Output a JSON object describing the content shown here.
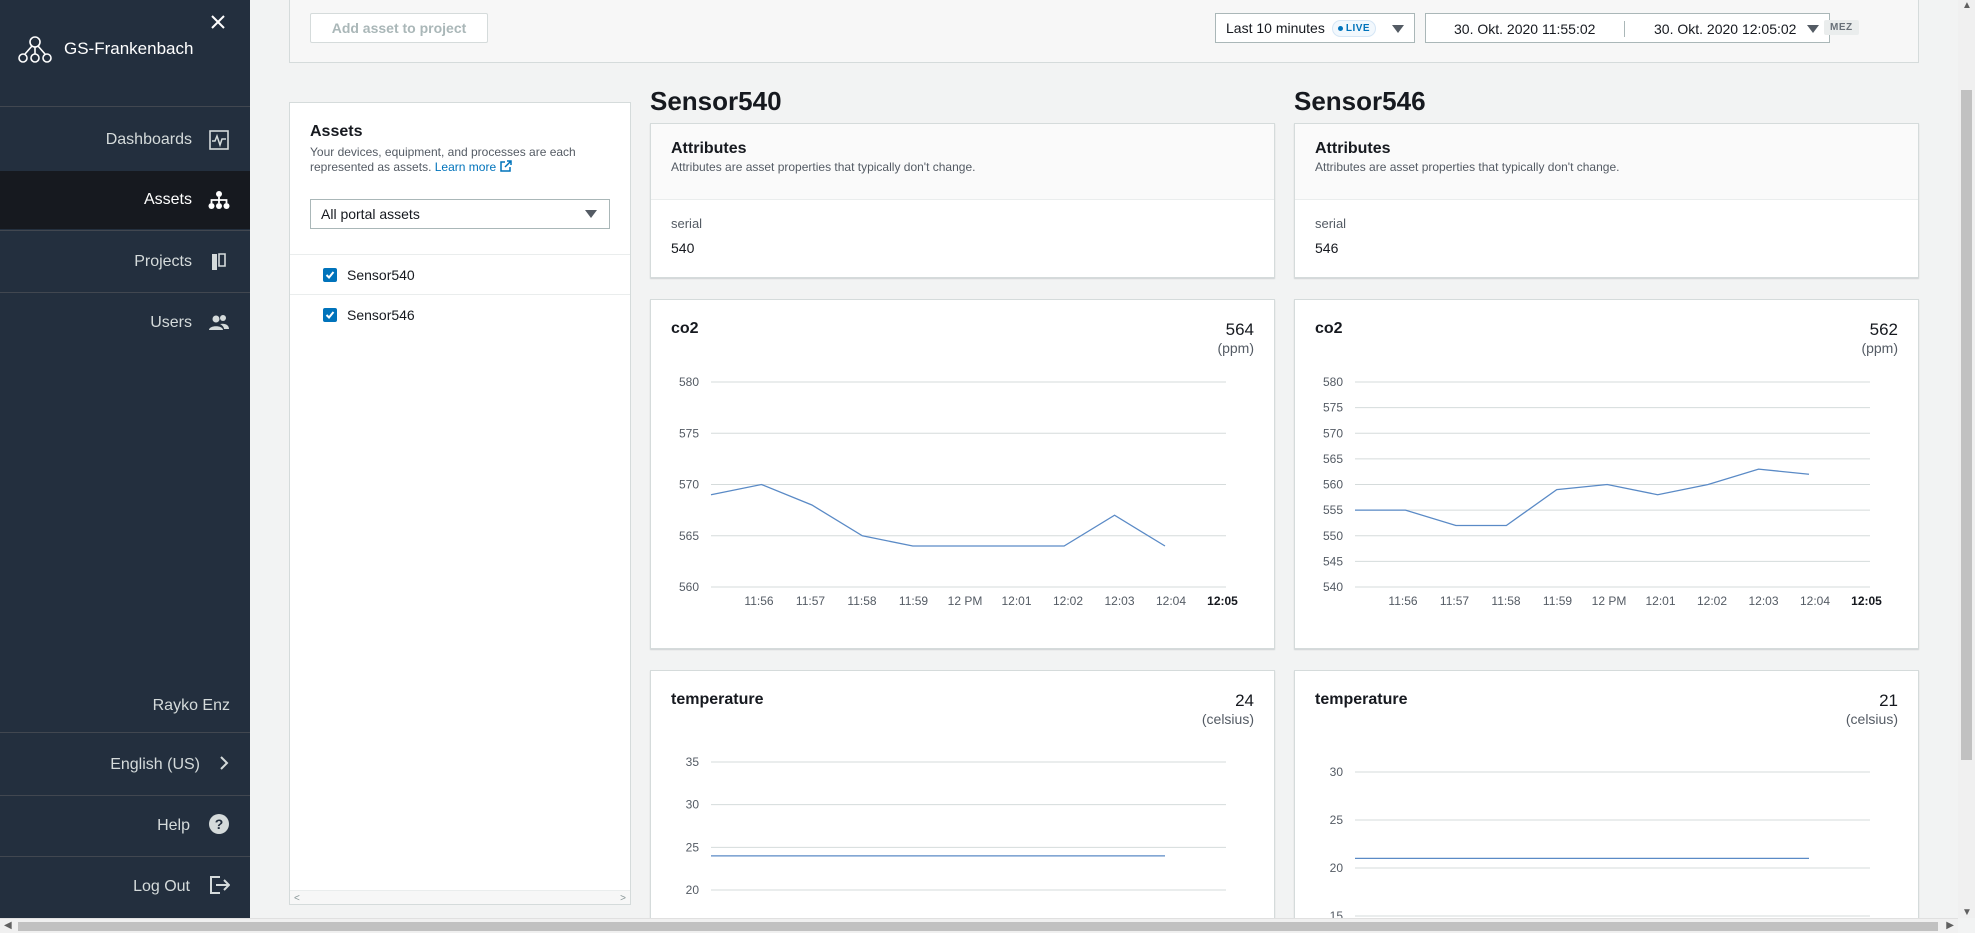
{
  "sidebar": {
    "portal_name": "GS-Frankenbach",
    "nav": [
      {
        "label": "Dashboards",
        "icon": "dashboard-icon"
      },
      {
        "label": "Assets",
        "icon": "hierarchy-icon"
      },
      {
        "label": "Projects",
        "icon": "projects-icon"
      },
      {
        "label": "Users",
        "icon": "users-icon"
      }
    ],
    "user": "Rayko Enz",
    "language": "English (US)",
    "help": "Help",
    "logout": "Log Out"
  },
  "toolbar": {
    "add_asset": "Add asset to project",
    "time_range": "Last 10 minutes",
    "live": "LIVE",
    "start": "30. Okt. 2020 11:55:02",
    "end": "30. Okt. 2020 12:05:02",
    "timezone": "MEZ"
  },
  "assets_panel": {
    "title": "Assets",
    "description": "Your devices, equipment, and processes are each represented as assets.",
    "learn_more": "Learn more",
    "filter": "All portal assets",
    "items": [
      "Sensor540",
      "Sensor546"
    ]
  },
  "sensors": [
    {
      "name": "Sensor540",
      "attributes_title": "Attributes",
      "attributes_desc": "Attributes are asset properties that typically don't change.",
      "serial_label": "serial",
      "serial_value": "540",
      "co2": {
        "name": "co2",
        "value": "564",
        "unit": "(ppm)"
      },
      "temperature": {
        "name": "temperature",
        "value": "24",
        "unit": "(celsius)"
      }
    },
    {
      "name": "Sensor546",
      "attributes_title": "Attributes",
      "attributes_desc": "Attributes are asset properties that typically don't change.",
      "serial_label": "serial",
      "serial_value": "546",
      "co2": {
        "name": "co2",
        "value": "562",
        "unit": "(ppm)"
      },
      "temperature": {
        "name": "temperature",
        "value": "21",
        "unit": "(celsius)"
      }
    }
  ],
  "chart_data": [
    {
      "type": "line",
      "series_of": "Sensor540 co2",
      "x": [
        "11:55:30",
        "11:56",
        "11:57",
        "11:58",
        "11:59",
        "12 PM",
        "12:01",
        "12:02",
        "12:03",
        "12:04"
      ],
      "values": [
        569,
        570,
        568,
        565,
        564,
        564,
        564,
        564,
        567,
        564
      ],
      "yticks": [
        560,
        565,
        570,
        575,
        580
      ],
      "ylim": [
        560,
        580
      ],
      "xticks": [
        "11:56",
        "11:57",
        "11:58",
        "11:59",
        "12 PM",
        "12:01",
        "12:02",
        "12:03",
        "12:04",
        "12:05"
      ],
      "grid": true
    },
    {
      "type": "line",
      "series_of": "Sensor546 co2",
      "x": [
        "11:55:30",
        "11:56",
        "11:57",
        "11:58",
        "11:59",
        "12 PM",
        "12:01",
        "12:02",
        "12:03",
        "12:04"
      ],
      "values": [
        555,
        555,
        552,
        552,
        559,
        560,
        558,
        560,
        563,
        562
      ],
      "yticks": [
        540,
        545,
        550,
        555,
        560,
        565,
        570,
        575,
        580
      ],
      "ylim": [
        540,
        580
      ],
      "xticks": [
        "11:56",
        "11:57",
        "11:58",
        "11:59",
        "12 PM",
        "12:01",
        "12:02",
        "12:03",
        "12:04",
        "12:05"
      ],
      "grid": true
    },
    {
      "type": "line",
      "series_of": "Sensor540 temperature",
      "values": [
        24,
        24
      ],
      "yticks": [
        20,
        25,
        30,
        35
      ],
      "ylim": [
        20,
        35
      ],
      "grid": true
    },
    {
      "type": "line",
      "series_of": "Sensor546 temperature",
      "values": [
        21,
        21
      ],
      "yticks": [
        15,
        20,
        25,
        30
      ],
      "ylim": [
        15,
        30
      ],
      "grid": true
    }
  ],
  "colors": {
    "sidebar": "#232f3e",
    "line": "#5a8ac6",
    "accent": "#0073bb"
  }
}
